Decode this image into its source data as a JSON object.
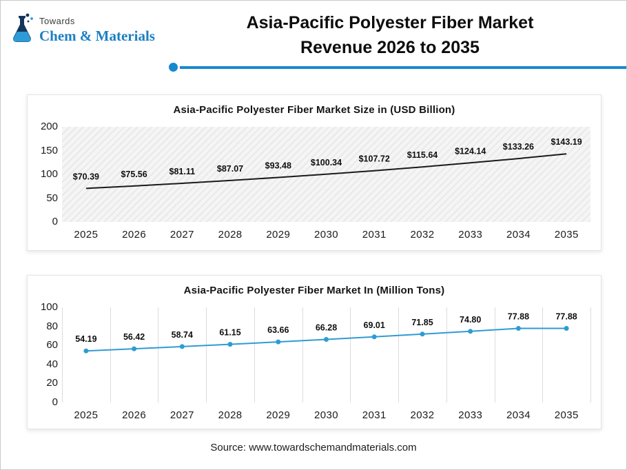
{
  "header": {
    "brand_top": "Towards",
    "brand_name": "Chem & Materials",
    "title": "Asia-Pacific Polyester Fiber Market Revenue 2026 to 2035"
  },
  "footer": {
    "source": "Source: www.towardschemandmaterials.com"
  },
  "colors": {
    "accent_blue": "#1789cf",
    "brand_navy": "#14365c",
    "brand_blue": "#1b7fc4",
    "chart1_line": "#1a1a1a",
    "chart2_line": "#2e9bd6"
  },
  "chart_data": [
    {
      "type": "line",
      "title": "Asia-Pacific Polyester Fiber Market Size in (USD Billion)",
      "categories": [
        "2025",
        "2026",
        "2027",
        "2028",
        "2029",
        "2030",
        "2031",
        "2032",
        "2033",
        "2034",
        "2035"
      ],
      "values": [
        70.39,
        75.56,
        81.11,
        87.07,
        93.48,
        100.34,
        107.72,
        115.64,
        124.14,
        133.26,
        143.19
      ],
      "labels": [
        "$70.39",
        "$75.56",
        "$81.11",
        "$87.07",
        "$93.48",
        "$100.34",
        "$107.72",
        "$115.64",
        "$124.14",
        "$133.26",
        "$143.19"
      ],
      "ylim": [
        0,
        200
      ],
      "yticks": [
        0,
        50,
        100,
        150,
        200
      ],
      "line_color": "#1a1a1a",
      "markers": false,
      "plot_background": "hatched-gray",
      "grid": "none",
      "legend": "none"
    },
    {
      "type": "line",
      "title": "Asia-Pacific Polyester Fiber Market In (Million Tons)",
      "categories": [
        "2025",
        "2026",
        "2027",
        "2028",
        "2029",
        "2030",
        "2031",
        "2032",
        "2033",
        "2034",
        "2035"
      ],
      "values": [
        54.19,
        56.42,
        58.74,
        61.15,
        63.66,
        66.28,
        69.01,
        71.85,
        74.8,
        77.88,
        77.88
      ],
      "labels": [
        "54.19",
        "56.42",
        "58.74",
        "61.15",
        "63.66",
        "66.28",
        "69.01",
        "71.85",
        "74.80",
        "77.88",
        "77.88"
      ],
      "ylim": [
        0,
        100
      ],
      "yticks": [
        0,
        20,
        40,
        60,
        80,
        100
      ],
      "line_color": "#2e9bd6",
      "markers": true,
      "plot_background": "white",
      "grid": "vertical",
      "legend": "none"
    }
  ]
}
